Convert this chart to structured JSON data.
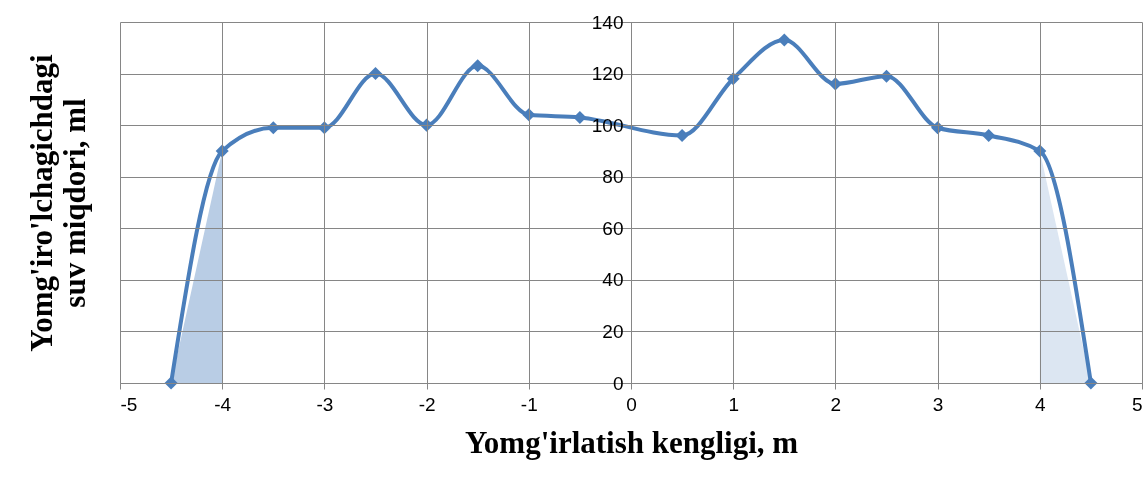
{
  "chart_data": {
    "type": "line",
    "xlabel": "Yomg'irlatish kengligi, m",
    "ylabel": "Yomg'iro'lchagichdagi suv miqdori, ml",
    "xlim": [
      -5,
      5
    ],
    "xticks": [
      -5,
      -4,
      -3,
      -2,
      -1,
      0,
      1,
      2,
      3,
      4,
      5
    ],
    "ylim": [
      0,
      140
    ],
    "yticks": [
      0,
      20,
      40,
      60,
      80,
      100,
      120,
      140
    ],
    "grid": true,
    "line_style": "solid",
    "series": [
      {
        "type": "area",
        "color": "#b9cde5",
        "x": [
          -4.5,
          -4
        ],
        "values": [
          0,
          90
        ]
      },
      {
        "type": "area",
        "color": "#dce6f2",
        "x": [
          4,
          4.5
        ],
        "values": [
          90,
          0
        ]
      },
      {
        "color": "#4a7ebb",
        "marker": "diamond",
        "x": [
          -4.5,
          -4,
          -3.5,
          -3,
          -2.5,
          -2,
          -1.5,
          -1,
          -0.5,
          0.5,
          1,
          1.5,
          2,
          2.5,
          3,
          3.5,
          4,
          4.5
        ],
        "values": [
          0,
          90,
          99,
          99,
          120,
          100,
          123,
          104,
          103,
          96,
          118,
          133,
          116,
          119,
          99,
          96,
          90,
          0
        ]
      }
    ]
  }
}
